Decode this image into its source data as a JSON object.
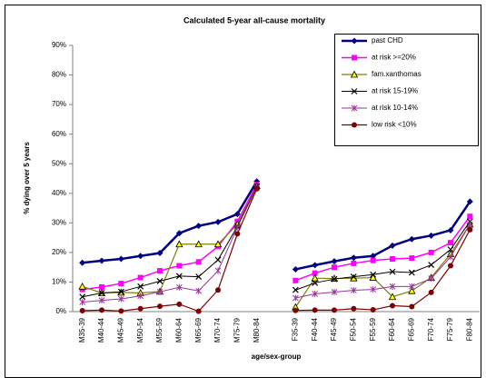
{
  "chart_data": {
    "type": "line",
    "title": "Calculated 5-year all-cause mortality",
    "x_label": "age/sex-group",
    "y_label": "% dying over 5 years",
    "categories": [
      "M35-39",
      "M40-44",
      "M45-49",
      "M50-54",
      "M55-59",
      "M60-64",
      "M65-69",
      "M70-74",
      "M75-79",
      "M80-84",
      null,
      "F35-39",
      "F40-44",
      "F45-49",
      "F50-54",
      "F55-59",
      "F60-64",
      "F65-69",
      "F70-74",
      "F75-79",
      "F80-84"
    ],
    "ylim": [
      0,
      90
    ],
    "yticks": [
      {
        "value": 0,
        "label": "0%"
      },
      {
        "value": 10,
        "label": "10%"
      },
      {
        "value": 20,
        "label": "20%"
      },
      {
        "value": 30,
        "label": "30%"
      },
      {
        "value": 40,
        "label": "40%"
      },
      {
        "value": 50,
        "label": "50%"
      },
      {
        "value": 60,
        "label": "60%"
      },
      {
        "value": 70,
        "label": "70%"
      },
      {
        "value": 80,
        "label": "80%"
      },
      {
        "value": 90,
        "label": "90%"
      }
    ],
    "grid": false,
    "legend": "top-right",
    "series": [
      {
        "name": "past CHD",
        "color": "#000080",
        "marker": "diamond",
        "width": 2.5,
        "values": [
          16.5,
          17.2,
          17.8,
          18.8,
          19.8,
          26.5,
          29,
          30.3,
          33,
          44,
          null,
          14.3,
          15.7,
          17,
          18.2,
          18.8,
          22.3,
          24.5,
          25.7,
          27.5,
          37.2
        ]
      },
      {
        "name": "at risk >=20%",
        "color": "#ff00ff",
        "marker": "square",
        "width": 1.5,
        "values": [
          7.5,
          8.3,
          9.5,
          11.5,
          13.8,
          15.5,
          16.8,
          22,
          30.5,
          43,
          null,
          10.5,
          13,
          15,
          16.3,
          17.3,
          17.8,
          18.1,
          20,
          23.3,
          32.2
        ]
      },
      {
        "name": "fam.xanthomas",
        "color": "#808000",
        "marker": "triangle",
        "width": 1.2,
        "values": [
          8.5,
          6.3,
          6.5,
          6.3,
          6.8,
          22.8,
          22.8,
          22.8,
          29.5,
          42.5,
          null,
          1.5,
          11.3,
          11.2,
          11.3,
          11.5,
          5,
          7,
          11.5,
          19.5,
          29.5
        ]
      },
      {
        "name": "at risk 15-19%",
        "color": "#000000",
        "marker": "x",
        "width": 1,
        "values": [
          5,
          6.3,
          6.7,
          8.5,
          10.3,
          12,
          11.8,
          17.5,
          28.8,
          42.3,
          null,
          7.3,
          9.7,
          11,
          11.8,
          12.5,
          13.5,
          13.2,
          15.8,
          21,
          30.5
        ]
      },
      {
        "name": "at risk 10-14%",
        "color": "#993399",
        "marker": "asterisk",
        "width": 1,
        "values": [
          3.2,
          3.8,
          4.3,
          5.3,
          6.7,
          8.2,
          7,
          13.8,
          28.5,
          42,
          null,
          4.6,
          6,
          6.6,
          7.2,
          7.5,
          8.5,
          8.5,
          11.2,
          18.5,
          29.5
        ]
      },
      {
        "name": "low  risk <10%",
        "color": "#800000",
        "marker": "circle",
        "width": 1.2,
        "values": [
          0.3,
          0.5,
          0.2,
          1,
          1.8,
          2.5,
          0.1,
          7.3,
          26.3,
          41.5,
          null,
          0.4,
          0.5,
          0.5,
          1,
          0.6,
          2,
          1.7,
          6.5,
          15.5,
          27.7
        ]
      }
    ]
  }
}
